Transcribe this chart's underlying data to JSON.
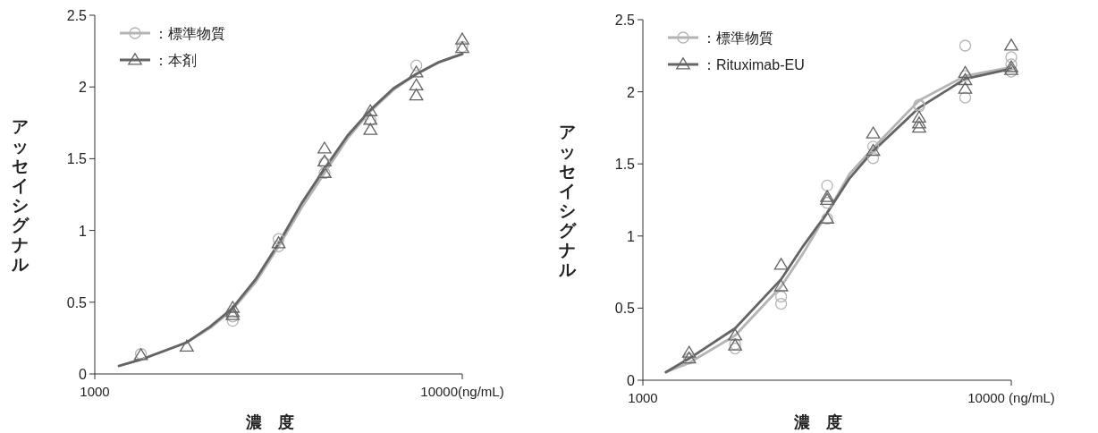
{
  "chart_data": [
    {
      "type": "scatter",
      "xlabel": "濃　度",
      "ylabel": "アッセイシグナル",
      "log": "x",
      "legend": "top left",
      "grid": false,
      "xlim": [
        1000,
        10000
      ],
      "xticks": [
        1000,
        {
          "value": 10000,
          "label": "10000(ng/mL)"
        }
      ],
      "ylim": [
        0,
        2.5
      ],
      "yticks": [
        0,
        0.5,
        1,
        1.5,
        2,
        2.5
      ],
      "series": [
        {
          "type": "line",
          "color": "#b4b4b4",
          "x": [
            1164,
            1335,
            1780,
            2060,
            2373,
            2740,
            3164,
            3656,
            4219,
            4870,
            5623,
            6500,
            7499,
            8590,
            10000
          ],
          "values": [
            0.056,
            0.1,
            0.22,
            0.32,
            0.45,
            0.64,
            0.89,
            1.16,
            1.4,
            1.64,
            1.83,
            1.98,
            2.09,
            2.17,
            2.23
          ]
        },
        {
          "type": "line",
          "color": "#646464",
          "x": [
            1164,
            1335,
            1780,
            2060,
            2373,
            2740,
            3164,
            3656,
            4219,
            4870,
            5623,
            6500,
            7499,
            8590,
            10000
          ],
          "values": [
            0.056,
            0.1,
            0.22,
            0.33,
            0.46,
            0.66,
            0.91,
            1.19,
            1.43,
            1.66,
            1.84,
            1.99,
            2.09,
            2.17,
            2.23
          ]
        },
        {
          "name": "：標準物質",
          "color": "#b4b4b4",
          "marker": "circle",
          "x": [
            1335,
            2373,
            2373,
            3164,
            3164,
            4219,
            4219,
            5623,
            7499,
            10000
          ],
          "values": [
            0.14,
            0.4,
            0.37,
            0.94,
            0.89,
            1.47,
            1.4,
            1.77,
            2.15,
            2.28
          ]
        },
        {
          "name": "：本剤",
          "color": "#646464",
          "marker": "triangle",
          "x": [
            1335,
            1780,
            2373,
            2373,
            2373,
            3164,
            4219,
            4219,
            4219,
            5623,
            5623,
            5623,
            7499,
            7499,
            7499,
            10000,
            10000
          ],
          "values": [
            0.13,
            0.19,
            0.46,
            0.43,
            0.41,
            0.91,
            1.57,
            1.48,
            1.4,
            1.83,
            1.77,
            1.7,
            2.1,
            2.01,
            1.94,
            2.33,
            2.27
          ]
        }
      ]
    },
    {
      "type": "scatter",
      "xlabel": "濃　度",
      "ylabel": "アッセイシグナル",
      "log": "x",
      "legend": "top left",
      "grid": false,
      "xlim": [
        1000,
        10000
      ],
      "xticks": [
        1000,
        {
          "value": 10000,
          "label": "10000 (ng/mL)"
        }
      ],
      "ylim": [
        0,
        2.5
      ],
      "yticks": [
        0,
        0.5,
        1,
        1.5,
        2,
        2.5
      ],
      "series": [
        {
          "type": "line",
          "color": "#b4b4b4",
          "x": [
            1155,
            1335,
            1780,
            2373,
            2723,
            3164,
            3640,
            4219,
            5623,
            7499,
            10000
          ],
          "values": [
            0.056,
            0.12,
            0.31,
            0.65,
            0.88,
            1.16,
            1.43,
            1.61,
            1.94,
            2.11,
            2.17
          ]
        },
        {
          "type": "line",
          "color": "#646464",
          "x": [
            1155,
            1335,
            1780,
            2373,
            2723,
            3164,
            3640,
            4219,
            5623,
            7499,
            10000
          ],
          "values": [
            0.056,
            0.15,
            0.36,
            0.7,
            0.93,
            1.16,
            1.4,
            1.59,
            1.89,
            2.09,
            2.16
          ]
        },
        {
          "name": "：標準物質",
          "color": "#b4b4b4",
          "marker": "circle",
          "x": [
            1335,
            1780,
            1780,
            2373,
            2373,
            3164,
            3164,
            3164,
            4219,
            4219,
            5623,
            5623,
            7499,
            7499,
            7499,
            10000,
            10000,
            10000
          ],
          "values": [
            0.15,
            0.22,
            0.25,
            0.53,
            0.58,
            1.35,
            1.23,
            1.12,
            1.62,
            1.54,
            1.91,
            1.9,
            2.32,
            2.11,
            1.96,
            2.24,
            2.19,
            2.14
          ]
        },
        {
          "name": "：Rituximab-EU",
          "color": "#646464",
          "marker": "triangle",
          "x": [
            1335,
            1335,
            1780,
            1780,
            2373,
            2373,
            3164,
            3164,
            3164,
            4219,
            4219,
            5623,
            5623,
            5623,
            7499,
            7499,
            7499,
            10000,
            10000,
            10000
          ],
          "values": [
            0.19,
            0.15,
            0.31,
            0.24,
            0.8,
            0.65,
            1.27,
            1.25,
            1.12,
            1.71,
            1.59,
            1.82,
            1.78,
            1.75,
            2.13,
            2.08,
            2.02,
            2.32,
            2.17,
            2.15
          ]
        }
      ]
    }
  ]
}
